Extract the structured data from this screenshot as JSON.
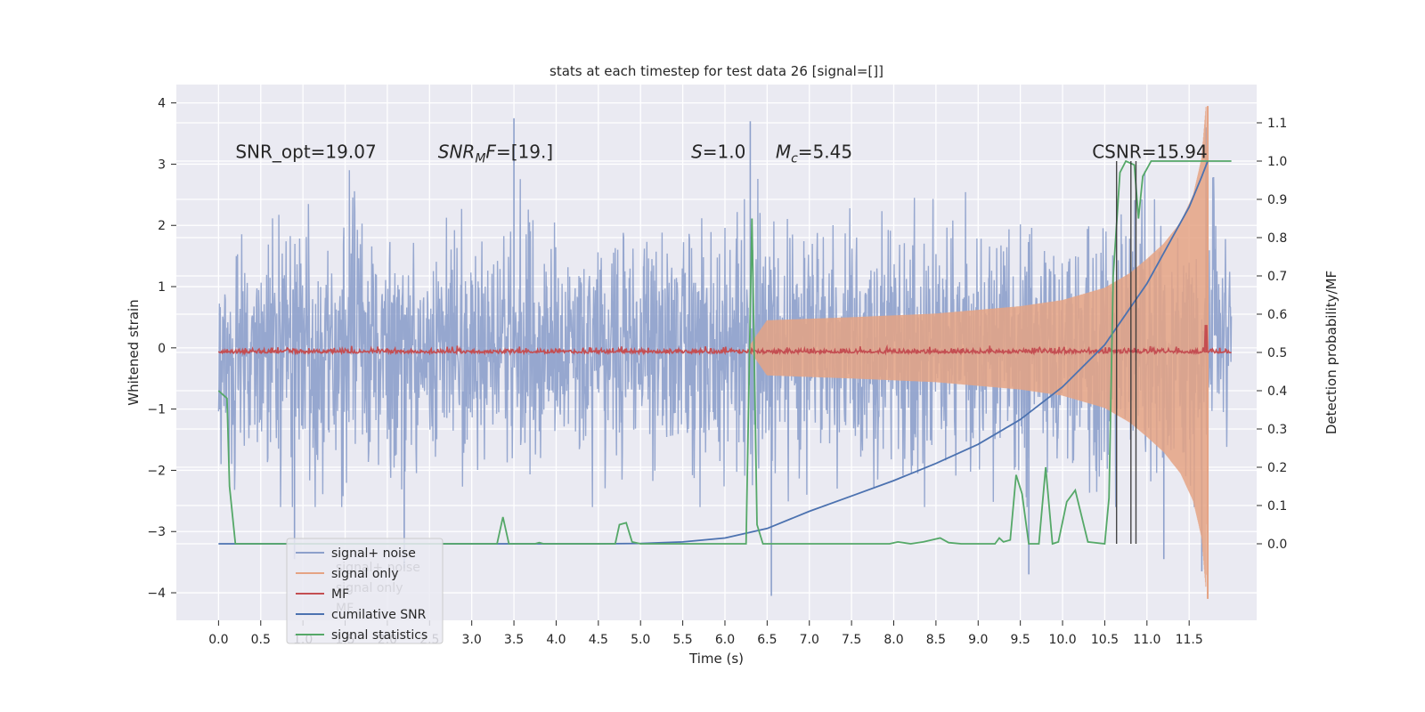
{
  "chart_data": {
    "type": "line",
    "title": "stats at each timestep for test data 26 [signal=[]]",
    "xlabel": "Time (s)",
    "ylabel": "Whitened strain",
    "y2label": "Detection probability/MF",
    "xlim": [
      -0.5,
      12.3
    ],
    "ylim": [
      -4.45,
      4.3
    ],
    "y2lim": [
      -0.2,
      1.2
    ],
    "xticks": [
      0.0,
      0.5,
      1.0,
      1.5,
      2.0,
      2.5,
      3.0,
      3.5,
      4.0,
      4.5,
      5.0,
      5.5,
      6.0,
      6.5,
      7.0,
      7.5,
      8.0,
      8.5,
      9.0,
      9.5,
      10.0,
      10.5,
      11.0,
      11.5
    ],
    "xtick_labels": [
      "0.0",
      "0.5",
      "1.0",
      "1.5",
      "2.0",
      "2.5",
      "3.0",
      "3.5",
      "4.0",
      "4.5",
      "5.0",
      "5.5",
      "6.0",
      "6.5",
      "7.0",
      "7.5",
      "8.0",
      "8.5",
      "9.0",
      "9.5",
      "10.0",
      "10.5",
      "11.0",
      "11.5"
    ],
    "yticks": [
      -4,
      -3,
      -2,
      -1,
      0,
      1,
      2,
      3,
      4
    ],
    "ytick_labels": [
      "−4",
      "−3",
      "−2",
      "−1",
      "0",
      "1",
      "2",
      "3",
      "4"
    ],
    "y2ticks": [
      0.0,
      0.1,
      0.2,
      0.3,
      0.4,
      0.5,
      0.6,
      0.7,
      0.8,
      0.9,
      1.0,
      1.1
    ],
    "y2tick_labels": [
      "0.0",
      "0.1",
      "0.2",
      "0.3",
      "0.4",
      "0.5",
      "0.6",
      "0.7",
      "0.8",
      "0.9",
      "1.0",
      "1.1"
    ],
    "grid": true,
    "legend_position": "lower-left",
    "annotations": [
      {
        "x": 0.2,
        "y": 3.1,
        "parts": [
          {
            "t": "SNR_opt=19.07",
            "i": false
          }
        ]
      },
      {
        "x": 2.6,
        "y": 3.1,
        "parts": [
          {
            "t": "SNR",
            "i": true
          },
          {
            "t": "M",
            "i": true,
            "sub": true
          },
          {
            "t": "F",
            "i": true
          },
          {
            "t": "=[19.]",
            "i": false
          }
        ]
      },
      {
        "x": 5.6,
        "y": 3.1,
        "parts": [
          {
            "t": "S",
            "i": true
          },
          {
            "t": "=1.0",
            "i": false
          }
        ]
      },
      {
        "x": 6.6,
        "y": 3.1,
        "parts": [
          {
            "t": "M",
            "i": true
          },
          {
            "t": "c",
            "i": true,
            "sub": true
          },
          {
            "t": "=5.45",
            "i": false
          }
        ]
      },
      {
        "x": 10.35,
        "y": 3.1,
        "parts": [
          {
            "t": "CSNR=15.94",
            "i": false
          }
        ]
      }
    ],
    "vertical_lines": [
      10.64,
      10.81,
      10.87
    ],
    "legend": [
      {
        "label": "signal+ noise",
        "color": "#8da0cb"
      },
      {
        "label": "signal only",
        "color": "#e5a384"
      },
      {
        "label": "MF",
        "color": "#c44e52"
      },
      {
        "label": "cumilative SNR",
        "color": "#4c72b0"
      },
      {
        "label": "signal statistics",
        "color": "#55a868"
      }
    ],
    "ghost_legend": [
      "signal+ noise",
      "signal only",
      "MF"
    ],
    "series": [
      {
        "name": "signal+ noise",
        "axis": "left",
        "color": "#8da0cb",
        "x_range": [
          0.0,
          12.0
        ],
        "typical_range": [
          -2.2,
          2.3
        ],
        "extremes": [
          {
            "x": 3.5,
            "y": 3.75
          },
          {
            "x": 6.3,
            "y": 3.7
          },
          {
            "x": 11.7,
            "y": 3.6
          },
          {
            "x": 6.55,
            "y": -4.05
          },
          {
            "x": 11.65,
            "y": -3.65
          },
          {
            "x": 9.6,
            "y": -3.7
          },
          {
            "x": 2.2,
            "y": -3.6
          },
          {
            "x": 0.9,
            "y": -3.45
          },
          {
            "x": 11.2,
            "y": -3.45
          }
        ]
      },
      {
        "name": "signal only",
        "axis": "left",
        "color": "#e5a384",
        "x_range": [
          6.3,
          11.72
        ],
        "envelope": [
          [
            6.3,
            0.05
          ],
          [
            6.5,
            0.45
          ],
          [
            7.5,
            0.5
          ],
          [
            8.5,
            0.56
          ],
          [
            9.5,
            0.68
          ],
          [
            10.0,
            0.78
          ],
          [
            10.5,
            0.98
          ],
          [
            10.8,
            1.22
          ],
          [
            11.0,
            1.45
          ],
          [
            11.2,
            1.7
          ],
          [
            11.4,
            2.05
          ],
          [
            11.55,
            2.5
          ],
          [
            11.65,
            3.1
          ],
          [
            11.7,
            3.95
          ],
          [
            11.72,
            0.0
          ]
        ]
      },
      {
        "name": "MF",
        "axis": "right",
        "color": "#c44e52",
        "x_range": [
          0.0,
          12.0
        ],
        "baseline": 0.5,
        "spike": {
          "x": 11.7,
          "y": 0.57
        }
      },
      {
        "name": "cumilative SNR",
        "axis": "right",
        "color": "#4c72b0",
        "x": [
          0.0,
          4.5,
          5.0,
          5.5,
          6.0,
          6.5,
          7.0,
          7.5,
          8.0,
          8.5,
          9.0,
          9.5,
          10.0,
          10.5,
          11.0,
          11.3,
          11.5,
          11.65,
          11.72
        ],
        "y": [
          0.0,
          0.0,
          0.001,
          0.005,
          0.015,
          0.04,
          0.085,
          0.125,
          0.165,
          0.21,
          0.26,
          0.325,
          0.41,
          0.52,
          0.68,
          0.8,
          0.88,
          0.96,
          1.0
        ]
      },
      {
        "name": "signal statistics",
        "axis": "right",
        "color": "#55a868",
        "x": [
          0.0,
          0.05,
          0.1,
          0.13,
          0.2,
          3.3,
          3.37,
          3.44,
          3.5,
          3.75,
          3.8,
          3.85,
          4.7,
          4.75,
          4.83,
          4.9,
          5.0,
          6.25,
          6.32,
          6.38,
          6.45,
          6.55,
          7.95,
          8.05,
          8.2,
          8.35,
          8.55,
          8.65,
          8.8,
          9.2,
          9.25,
          9.3,
          9.38,
          9.45,
          9.52,
          9.6,
          9.72,
          9.8,
          9.88,
          9.95,
          10.05,
          10.15,
          10.3,
          10.5,
          10.55,
          10.6,
          10.68,
          10.75,
          10.85,
          10.9,
          10.95,
          11.05,
          11.1,
          12.0
        ],
        "y": [
          0.4,
          0.39,
          0.38,
          0.15,
          0.0,
          0.0,
          0.07,
          0.0,
          0.0,
          0.0,
          0.003,
          0.0,
          0.0,
          0.05,
          0.055,
          0.005,
          0.0,
          0.0,
          0.85,
          0.05,
          0.0,
          0.0,
          0.0,
          0.005,
          0.0,
          0.005,
          0.015,
          0.003,
          0.0,
          0.0,
          0.015,
          0.005,
          0.01,
          0.18,
          0.13,
          0.0,
          0.0,
          0.2,
          0.0,
          0.005,
          0.11,
          0.14,
          0.005,
          0.0,
          0.12,
          0.7,
          0.97,
          1.0,
          0.99,
          0.85,
          0.96,
          1.0,
          1.0,
          1.0
        ]
      }
    ]
  }
}
